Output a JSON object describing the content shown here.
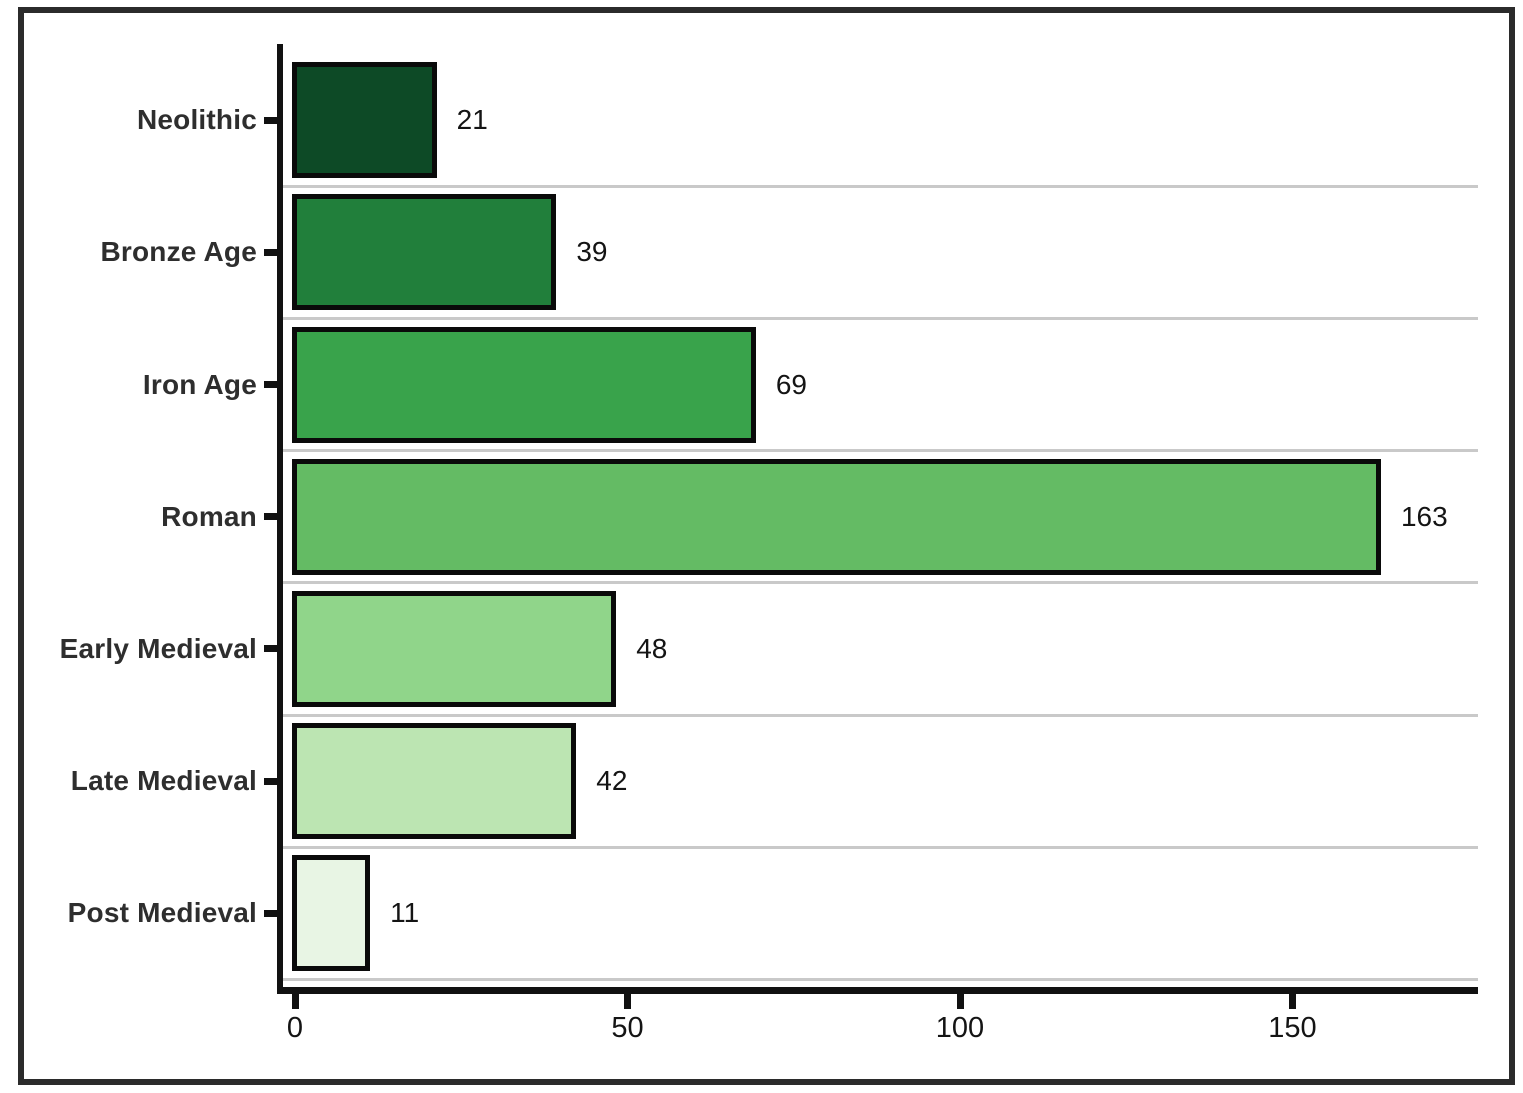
{
  "chart_data": {
    "type": "bar",
    "orientation": "horizontal",
    "title": "",
    "xlabel": "",
    "ylabel": "",
    "categories": [
      "Neolithic",
      "Bronze Age",
      "Iron Age",
      "Roman",
      "Early Medieval",
      "Late Medieval",
      "Post Medieval"
    ],
    "values": [
      21,
      39,
      69,
      163,
      48,
      42,
      11
    ],
    "value_labels": [
      "21",
      "39",
      "69",
      "163",
      "48",
      "42",
      "11"
    ],
    "x_ticks": [
      0,
      50,
      100,
      150
    ],
    "x_tick_labels": [
      "0",
      "50",
      "100",
      "150"
    ],
    "xlim": [
      0,
      178
    ],
    "grid": "horizontal-row-separators",
    "legend": "none",
    "bar_colors": [
      "#0d4a26",
      "#217f3b",
      "#39a34b",
      "#64bb64",
      "#90d58a",
      "#bce5b2",
      "#e8f5e4"
    ],
    "bar_border_color": "#0a0a0a",
    "axis_color": "#111111",
    "gridline_color": "#c9c9c9",
    "frame_color": "#2b2b2b",
    "category_label_color": "#2e2e2e",
    "value_label_color": "#141414",
    "tick_label_color": "#141414",
    "background_color": "#ffffff"
  }
}
